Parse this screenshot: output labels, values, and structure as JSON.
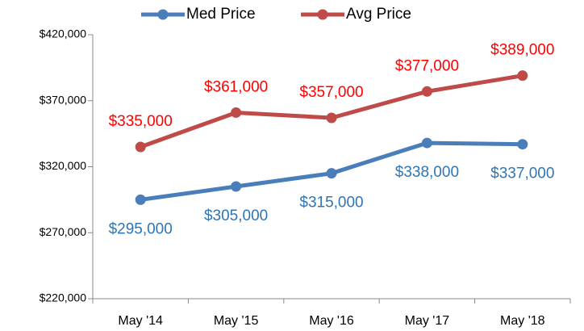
{
  "chart_data": {
    "type": "line",
    "categories": [
      "May '14",
      "May '15",
      "May '16",
      "May '17",
      "May '18"
    ],
    "series": [
      {
        "name": "Med Price",
        "color": "#4a7ebb",
        "label_color": "#2e75b6",
        "label_position": "below",
        "values": [
          295000,
          305000,
          315000,
          338000,
          337000
        ],
        "value_labels": [
          "$295,000",
          "$305,000",
          "$315,000",
          "$338,000",
          "$337,000"
        ]
      },
      {
        "name": "Avg Price",
        "color": "#be4b48",
        "label_color": "#ff0000",
        "label_position": "above",
        "values": [
          335000,
          361000,
          357000,
          377000,
          389000
        ],
        "value_labels": [
          "$335,000",
          "$361,000",
          "$357,000",
          "$377,000",
          "$389,000"
        ]
      }
    ],
    "ylim": [
      220000,
      420000
    ],
    "yticks": [
      {
        "value": 220000,
        "label": "$220,000"
      },
      {
        "value": 270000,
        "label": "$270,000"
      },
      {
        "value": 320000,
        "label": "$320,000"
      },
      {
        "value": 370000,
        "label": "$370,000"
      },
      {
        "value": 420000,
        "label": "$420,000"
      }
    ],
    "legend": "top"
  }
}
